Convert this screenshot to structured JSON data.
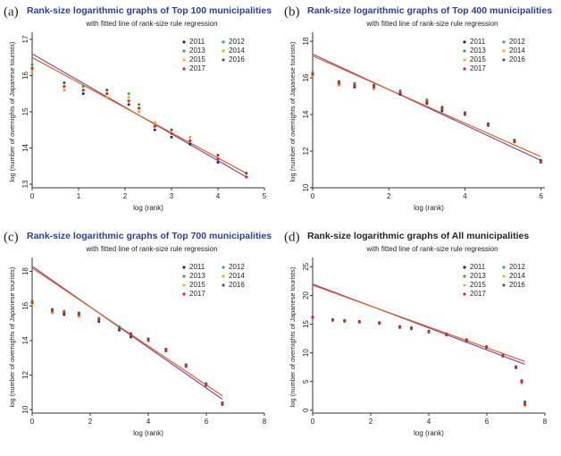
{
  "chart_data": [
    {
      "type": "scatter",
      "label": "(a)",
      "title": "Rank-size logarithmic graphs of Top 100 municipalities",
      "title_color": "#2a3f96",
      "subtitle": "with fitted line of rank-size rule regression",
      "xlabel": "log (rank)",
      "ylabel": "log (number of overnights of Japanese tourists)",
      "xlim": [
        0,
        5
      ],
      "xticks": [
        0,
        1,
        2,
        3,
        4,
        5
      ],
      "ylim": [
        12.9,
        17.1
      ],
      "yticks": [
        13,
        14,
        15,
        16,
        17
      ],
      "x": [
        0,
        0.69,
        1.1,
        1.61,
        2.08,
        2.3,
        2.64,
        3.0,
        3.4,
        4.0,
        4.61
      ],
      "series": [
        {
          "name": "2011",
          "color": "#1a237e",
          "values": [
            16.1,
            15.6,
            15.5,
            15.4,
            15.2,
            15.0,
            14.5,
            14.3,
            14.1,
            13.6,
            13.2
          ]
        },
        {
          "name": "2012",
          "color": "#26a6b8",
          "values": [
            16.3,
            15.8,
            15.7,
            15.6,
            15.4,
            15.2,
            14.7,
            14.5,
            14.3,
            13.8,
            13.3
          ]
        },
        {
          "name": "2013",
          "color": "#3aa845",
          "values": [
            16.3,
            15.8,
            15.7,
            15.5,
            15.5,
            15.2,
            14.7,
            14.5,
            14.3,
            13.8,
            13.3
          ]
        },
        {
          "name": "2014",
          "color": "#f0b020",
          "values": [
            16.1,
            15.6,
            15.6,
            15.4,
            15.3,
            15.0,
            14.6,
            14.4,
            14.2,
            13.7,
            13.2
          ]
        },
        {
          "name": "2015",
          "color": "#d8c030",
          "values": [
            16.2,
            15.7,
            15.6,
            15.5,
            15.4,
            15.1,
            14.7,
            14.4,
            14.3,
            13.7,
            13.2
          ]
        },
        {
          "name": "2016",
          "color": "#555555",
          "values": [
            16.2,
            15.8,
            15.6,
            15.6,
            15.3,
            15.1,
            14.6,
            14.5,
            14.2,
            13.8,
            13.3
          ]
        },
        {
          "name": "2017",
          "color": "#e0202a",
          "values": [
            16.2,
            15.7,
            15.6,
            15.5,
            15.3,
            15.1,
            14.6,
            14.4,
            14.2,
            13.7,
            13.2
          ]
        }
      ],
      "fit_lines": [
        {
          "color": "#7a4fa0",
          "x": [
            0,
            4.61
          ],
          "values": [
            16.6,
            13.2
          ]
        },
        {
          "color": "#e0602a",
          "x": [
            0,
            4.61
          ],
          "values": [
            16.5,
            13.3
          ]
        }
      ]
    },
    {
      "type": "scatter",
      "label": "(b)",
      "title": "Rank-size logarithmic graphs of Top 400 municipalities",
      "title_color": "#2a3f96",
      "subtitle": "with fitted line of rank-size rule regression",
      "xlabel": "log (rank)",
      "ylabel": "log (number of overnights of Japanese tourists)",
      "xlim": [
        0,
        6.1
      ],
      "xticks": [
        0,
        2,
        4,
        6
      ],
      "ylim": [
        10,
        18.3
      ],
      "yticks": [
        10,
        12,
        14,
        16,
        18
      ],
      "x": [
        0,
        0.69,
        1.1,
        1.61,
        2.3,
        3.0,
        3.4,
        4.0,
        4.61,
        5.3,
        5.99
      ],
      "series": [
        {
          "name": "2011",
          "color": "#1a237e",
          "values": [
            16.1,
            15.6,
            15.5,
            15.4,
            15.1,
            14.6,
            14.2,
            14.0,
            13.5,
            12.5,
            11.4
          ]
        },
        {
          "name": "2012",
          "color": "#26a6b8",
          "values": [
            16.3,
            15.8,
            15.7,
            15.6,
            15.3,
            14.8,
            14.4,
            14.1,
            13.5,
            12.6,
            11.5
          ]
        },
        {
          "name": "2013",
          "color": "#3aa845",
          "values": [
            16.3,
            15.8,
            15.7,
            15.5,
            15.3,
            14.8,
            14.3,
            14.1,
            13.4,
            12.6,
            11.5
          ]
        },
        {
          "name": "2014",
          "color": "#f0b020",
          "values": [
            16.1,
            15.6,
            15.6,
            15.4,
            15.2,
            14.7,
            14.3,
            14.0,
            13.4,
            12.5,
            11.4
          ]
        },
        {
          "name": "2015",
          "color": "#d8c030",
          "values": [
            16.2,
            15.7,
            15.6,
            15.5,
            15.2,
            14.7,
            14.3,
            14.0,
            13.4,
            12.5,
            11.4
          ]
        },
        {
          "name": "2016",
          "color": "#555555",
          "values": [
            16.2,
            15.8,
            15.6,
            15.6,
            15.2,
            14.7,
            14.4,
            14.1,
            13.5,
            12.6,
            11.5
          ]
        },
        {
          "name": "2017",
          "color": "#e0202a",
          "values": [
            16.2,
            15.7,
            15.6,
            15.5,
            15.2,
            14.7,
            14.3,
            14.0,
            13.4,
            12.5,
            11.4
          ]
        }
      ],
      "fit_lines": [
        {
          "color": "#7a4fa0",
          "x": [
            0,
            5.99
          ],
          "values": [
            17.3,
            11.5
          ]
        },
        {
          "color": "#e0602a",
          "x": [
            0,
            5.99
          ],
          "values": [
            17.2,
            11.7
          ]
        }
      ]
    },
    {
      "type": "scatter",
      "label": "(c)",
      "title": "Rank-size logarithmic graphs of Top 700 municipalities",
      "title_color": "#2a3f96",
      "subtitle": "with fitted line of rank-size rule regression",
      "xlabel": "log (rank)",
      "ylabel": "log (number of overnights of Japanese tourists)",
      "xlim": [
        0,
        8
      ],
      "xticks": [
        0,
        2,
        4,
        6,
        8
      ],
      "ylim": [
        9.8,
        18.6
      ],
      "yticks": [
        10,
        12,
        14,
        16,
        18
      ],
      "x": [
        0,
        0.69,
        1.1,
        1.61,
        2.3,
        3.0,
        3.4,
        4.0,
        4.61,
        5.3,
        5.99,
        6.55
      ],
      "series": [
        {
          "name": "2011",
          "color": "#1a237e",
          "values": [
            16.1,
            15.6,
            15.5,
            15.4,
            15.1,
            14.6,
            14.2,
            14.0,
            13.5,
            12.5,
            11.4,
            10.3
          ]
        },
        {
          "name": "2012",
          "color": "#26a6b8",
          "values": [
            16.3,
            15.8,
            15.7,
            15.6,
            15.3,
            14.8,
            14.4,
            14.1,
            13.5,
            12.6,
            11.5,
            10.4
          ]
        },
        {
          "name": "2013",
          "color": "#3aa845",
          "values": [
            16.3,
            15.8,
            15.7,
            15.5,
            15.3,
            14.8,
            14.3,
            14.1,
            13.4,
            12.6,
            11.5,
            10.4
          ]
        },
        {
          "name": "2014",
          "color": "#f0b020",
          "values": [
            16.1,
            15.6,
            15.6,
            15.4,
            15.2,
            14.7,
            14.3,
            14.0,
            13.4,
            12.5,
            11.4,
            10.3
          ]
        },
        {
          "name": "2015",
          "color": "#d8c030",
          "values": [
            16.2,
            15.7,
            15.6,
            15.5,
            15.2,
            14.7,
            14.3,
            14.0,
            13.4,
            12.5,
            11.4,
            10.3
          ]
        },
        {
          "name": "2016",
          "color": "#555555",
          "values": [
            16.2,
            15.8,
            15.6,
            15.6,
            15.2,
            14.7,
            14.4,
            14.1,
            13.5,
            12.6,
            11.5,
            10.4
          ]
        },
        {
          "name": "2017",
          "color": "#e0202a",
          "values": [
            16.2,
            15.7,
            15.6,
            15.5,
            15.2,
            14.7,
            14.3,
            14.0,
            13.4,
            12.5,
            11.4,
            10.3
          ]
        }
      ],
      "fit_lines": [
        {
          "color": "#7a4fa0",
          "x": [
            0,
            6.55
          ],
          "values": [
            18.3,
            10.6
          ]
        },
        {
          "color": "#e0602a",
          "x": [
            0,
            6.55
          ],
          "values": [
            18.2,
            10.8
          ]
        }
      ]
    },
    {
      "type": "scatter",
      "label": "(d)",
      "title": "Rank-size logarithmic graphs of All municipalities",
      "title_color": "#222222",
      "subtitle": "with fitted line of rank-size rule regression",
      "xlabel": "log (rank)",
      "ylabel": "log (number of overnights of Japanese tourists)",
      "xlim": [
        0,
        8
      ],
      "xticks": [
        0,
        2,
        4,
        6,
        8
      ],
      "ylim": [
        -0.5,
        26
      ],
      "yticks": [
        0,
        5,
        10,
        15,
        20,
        25
      ],
      "x": [
        0,
        0.69,
        1.1,
        1.61,
        2.3,
        3.0,
        3.4,
        4.0,
        4.61,
        5.3,
        5.99,
        6.55,
        7.0,
        7.2,
        7.31
      ],
      "series": [
        {
          "name": "2011",
          "color": "#1a237e",
          "values": [
            16.1,
            15.6,
            15.5,
            15.3,
            15.1,
            14.4,
            14.2,
            13.6,
            13.1,
            12.1,
            10.9,
            9.4,
            7.4,
            4.8,
            1.2
          ]
        },
        {
          "name": "2012",
          "color": "#26a6b8",
          "values": [
            16.3,
            15.8,
            15.7,
            15.5,
            15.3,
            14.6,
            14.4,
            13.8,
            13.3,
            12.3,
            11.1,
            9.6,
            7.6,
            5.2,
            1.5
          ]
        },
        {
          "name": "2013",
          "color": "#3aa845",
          "values": [
            16.3,
            15.8,
            15.7,
            15.4,
            15.3,
            14.6,
            14.3,
            13.8,
            13.2,
            12.3,
            11.1,
            9.6,
            7.6,
            5.1,
            1.3
          ]
        },
        {
          "name": "2014",
          "color": "#f0b020",
          "values": [
            16.1,
            15.6,
            15.6,
            15.3,
            15.2,
            14.5,
            14.3,
            13.7,
            13.2,
            12.2,
            11.0,
            9.5,
            7.5,
            4.9,
            0.8
          ]
        },
        {
          "name": "2015",
          "color": "#d8c030",
          "values": [
            16.2,
            15.7,
            15.6,
            15.4,
            15.2,
            14.5,
            14.3,
            13.7,
            13.2,
            12.2,
            11.0,
            9.5,
            7.5,
            5.0,
            1.1
          ]
        },
        {
          "name": "2016",
          "color": "#555555",
          "values": [
            16.2,
            15.8,
            15.6,
            15.5,
            15.2,
            14.6,
            14.4,
            13.8,
            13.3,
            12.3,
            11.1,
            9.6,
            7.6,
            5.1,
            1.4
          ]
        },
        {
          "name": "2017",
          "color": "#e0202a",
          "values": [
            16.2,
            15.7,
            15.6,
            15.4,
            15.2,
            14.5,
            14.3,
            13.7,
            13.2,
            12.2,
            11.0,
            9.5,
            7.5,
            5.0,
            1.0
          ]
        }
      ],
      "fit_lines": [
        {
          "color": "#7a4fa0",
          "x": [
            0,
            7.31
          ],
          "values": [
            22.0,
            8.0
          ]
        },
        {
          "color": "#e0602a",
          "x": [
            0,
            7.31
          ],
          "values": [
            21.8,
            8.5
          ]
        }
      ]
    }
  ]
}
